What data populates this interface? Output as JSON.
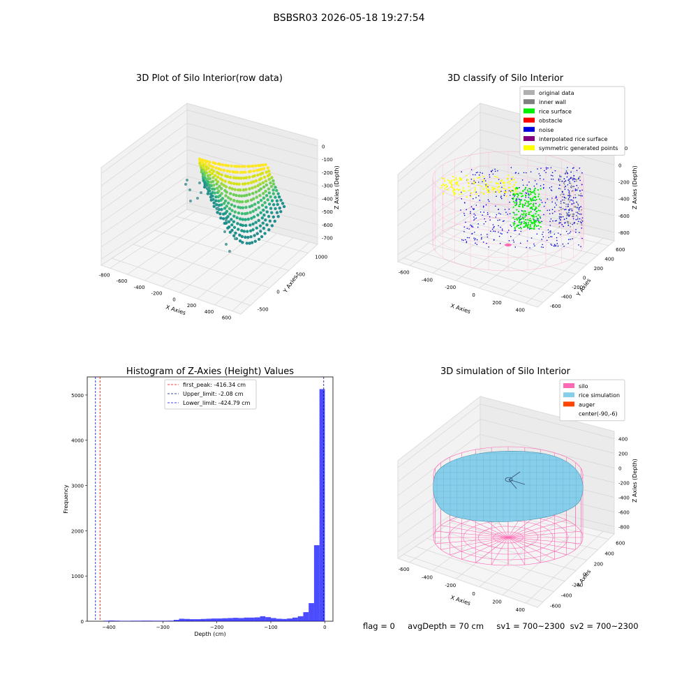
{
  "figure": {
    "suptitle": "BSBSR03 2026-05-18 19:27:54",
    "status": {
      "flag": "flag = 0",
      "avg_depth": "avgDepth = 70 cm",
      "sv1": "sv1 = 700~2300",
      "sv2": "sv2 = 700~2300"
    }
  },
  "chart_data": [
    {
      "type": "scatter",
      "projection": "3d",
      "title": "3D Plot of Silo Interior(row data)",
      "xlabel": "X Axies",
      "ylabel": "Y Axies",
      "zlabel": "Z Axies (Depth)",
      "x_ticks": [
        -800,
        -600,
        -400,
        -200,
        0,
        200,
        400,
        600
      ],
      "y_ticks": [
        -500,
        0,
        500,
        1000
      ],
      "z_ticks": [
        0,
        -100,
        -200,
        -300,
        -400,
        -500,
        -600,
        -700
      ],
      "colormap": "viridis",
      "point_cloud": "dense arc of scanned points, z from about -80 to -600"
    },
    {
      "type": "scatter",
      "projection": "3d",
      "title": "3D classify of Silo Interior",
      "xlabel": "X Axies",
      "ylabel": "Y Axies",
      "zlabel": "Z Axies (Depth)",
      "x_ticks": [
        -600,
        -400,
        -200,
        0,
        200,
        400
      ],
      "y_ticks": [
        -600,
        -400,
        -200,
        0,
        200,
        400,
        600
      ],
      "z_ticks": [
        200,
        0,
        -200,
        -400,
        -600,
        -800
      ],
      "legend_position": "top-right",
      "legend": [
        {
          "label": "original data",
          "color": "#b0b0b0"
        },
        {
          "label": "inner wall",
          "color": "#808080"
        },
        {
          "label": "rice surface",
          "color": "#00ee00"
        },
        {
          "label": "obstacle",
          "color": "#ff0000"
        },
        {
          "label": "noise",
          "color": "#0000dd"
        },
        {
          "label": "interpolated rice surface",
          "color": "#800080"
        },
        {
          "label": "symmetric generated points",
          "color": "#ffff00"
        }
      ]
    },
    {
      "type": "bar",
      "title": "Histogram of Z-Axies (Height) Values",
      "xlabel": "Depth (cm)",
      "ylabel": "Frequency",
      "xlim": [
        -440,
        15
      ],
      "ylim": [
        0,
        5400
      ],
      "x_ticks": [
        -400,
        -300,
        -200,
        -100,
        0
      ],
      "y_ticks": [
        0,
        1000,
        2000,
        3000,
        4000,
        5000
      ],
      "bar_color": "#0000ff",
      "bin_width": 10,
      "bins": [
        {
          "x": -400,
          "value": 10
        },
        {
          "x": -390,
          "value": 15
        },
        {
          "x": -380,
          "value": 12
        },
        {
          "x": -370,
          "value": 8
        },
        {
          "x": -360,
          "value": 8
        },
        {
          "x": -350,
          "value": 10
        },
        {
          "x": -340,
          "value": 10
        },
        {
          "x": -330,
          "value": 12
        },
        {
          "x": -320,
          "value": 12
        },
        {
          "x": -310,
          "value": 10
        },
        {
          "x": -300,
          "value": 10
        },
        {
          "x": -290,
          "value": 10
        },
        {
          "x": -280,
          "value": 12
        },
        {
          "x": -270,
          "value": 30
        },
        {
          "x": -260,
          "value": 55
        },
        {
          "x": -250,
          "value": 50
        },
        {
          "x": -240,
          "value": 45
        },
        {
          "x": -230,
          "value": 45
        },
        {
          "x": -220,
          "value": 50
        },
        {
          "x": -210,
          "value": 55
        },
        {
          "x": -200,
          "value": 60
        },
        {
          "x": -190,
          "value": 60
        },
        {
          "x": -180,
          "value": 65
        },
        {
          "x": -170,
          "value": 70
        },
        {
          "x": -160,
          "value": 75
        },
        {
          "x": -150,
          "value": 70
        },
        {
          "x": -140,
          "value": 80
        },
        {
          "x": -130,
          "value": 80
        },
        {
          "x": -120,
          "value": 85
        },
        {
          "x": -110,
          "value": 110
        },
        {
          "x": -100,
          "value": 90
        },
        {
          "x": -90,
          "value": 70
        },
        {
          "x": -80,
          "value": 55
        },
        {
          "x": -70,
          "value": 50
        },
        {
          "x": -60,
          "value": 60
        },
        {
          "x": -50,
          "value": 80
        },
        {
          "x": -40,
          "value": 110
        },
        {
          "x": -30,
          "value": 200
        },
        {
          "x": -20,
          "value": 400
        },
        {
          "x": -10,
          "value": 1680
        },
        {
          "x": 0,
          "value": 5130
        }
      ],
      "vlines": [
        {
          "label": "first_peak: -416.34 cm",
          "x": -416.34,
          "color": "#ff0000",
          "style": "dashed"
        },
        {
          "label": "Upper_limit: -2.08 cm",
          "x": -2.08,
          "color": "#000080",
          "style": "dashed"
        },
        {
          "label": "Lower_limit: -424.79 cm",
          "x": -424.79,
          "color": "#0000ff",
          "style": "dashed"
        }
      ],
      "legend_position": "top-center"
    },
    {
      "type": "surface",
      "projection": "3d",
      "title": "3D simulation of Silo Interior",
      "xlabel": "X Axies",
      "ylabel": "Y Axies",
      "zlabel": "Z Axies (Depth)",
      "x_ticks": [
        -600,
        -400,
        -200,
        0,
        200,
        400
      ],
      "y_ticks": [
        -600,
        -400,
        -200,
        0,
        200,
        400,
        600
      ],
      "z_ticks": [
        400,
        200,
        0,
        -200,
        -400,
        -600,
        -800
      ],
      "legend_position": "top-right",
      "legend": [
        {
          "label": "silo",
          "color": "#ff69b4"
        },
        {
          "label": "rice simulation",
          "color": "#87ceeb"
        },
        {
          "label": "auger",
          "color": "#ff4500"
        },
        {
          "label": "center(-90,-6)",
          "color": "#ffffff"
        }
      ]
    }
  ]
}
